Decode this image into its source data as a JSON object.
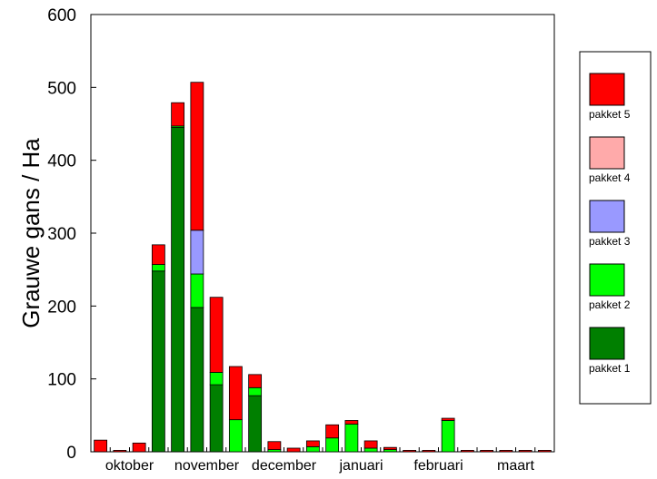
{
  "chart_data": {
    "type": "bar",
    "stacked": true,
    "ylabel": "Grauwe gans / Ha",
    "ylim": [
      0,
      600
    ],
    "yticks": [
      0,
      100,
      200,
      300,
      400,
      500,
      600
    ],
    "months": [
      "oktober",
      "november",
      "december",
      "januari",
      "februari",
      "maart"
    ],
    "grid": false,
    "legend_position": "right",
    "series": [
      {
        "name": "pakket 1",
        "color": "#007f00",
        "values": [
          0,
          0,
          0,
          248,
          445,
          198,
          92,
          0,
          77,
          0,
          0,
          0,
          0,
          0,
          0,
          0,
          0,
          0,
          0,
          0,
          0,
          0,
          0,
          0
        ]
      },
      {
        "name": "pakket 2",
        "color": "#00ff00",
        "values": [
          0,
          0,
          0,
          9,
          2,
          46,
          17,
          44,
          11,
          3,
          0,
          7,
          19,
          38,
          5,
          3,
          0,
          0,
          43,
          0,
          0,
          0,
          0,
          0
        ]
      },
      {
        "name": "pakket 3",
        "color": "#9999ff",
        "values": [
          0,
          0,
          0,
          0,
          0,
          60,
          0,
          0,
          0,
          0,
          0,
          0,
          0,
          0,
          0,
          0,
          0,
          0,
          0,
          0,
          0,
          0,
          0,
          0
        ]
      },
      {
        "name": "pakket 4",
        "color": "#ffaaaa",
        "values": [
          0,
          0,
          0,
          0,
          0,
          0,
          0,
          0,
          0,
          0,
          0,
          0,
          0,
          0,
          0,
          0,
          0,
          0,
          0,
          0,
          0,
          0,
          0,
          0
        ]
      },
      {
        "name": "pakket 5",
        "color": "#ff0000",
        "values": [
          16,
          2,
          12,
          27,
          32,
          203,
          103,
          73,
          18,
          11,
          5,
          8,
          18,
          5,
          10,
          3,
          2,
          2,
          3,
          2,
          2,
          2,
          2,
          2
        ]
      }
    ]
  }
}
